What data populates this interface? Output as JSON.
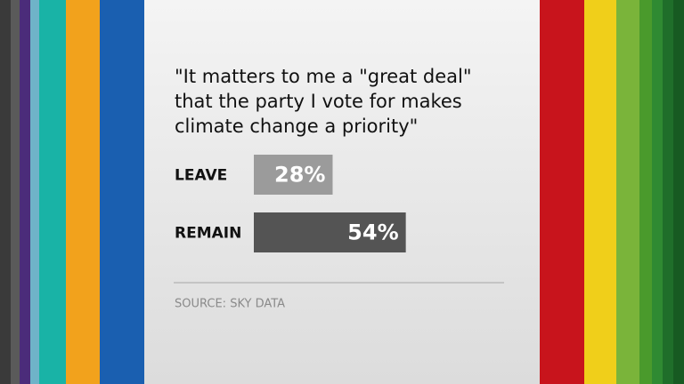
{
  "chart_data": {
    "type": "bar",
    "orientation": "horizontal",
    "title": "\"It matters to me a \"great deal\" that the party I vote for makes climate change a priority\"",
    "categories": [
      "LEAVE",
      "REMAIN"
    ],
    "values": [
      28,
      54
    ],
    "value_labels": [
      "28%",
      "54%"
    ],
    "colors": [
      "#9b9b9b",
      "#545454"
    ],
    "source": "SOURCE: SKY DATA"
  }
}
